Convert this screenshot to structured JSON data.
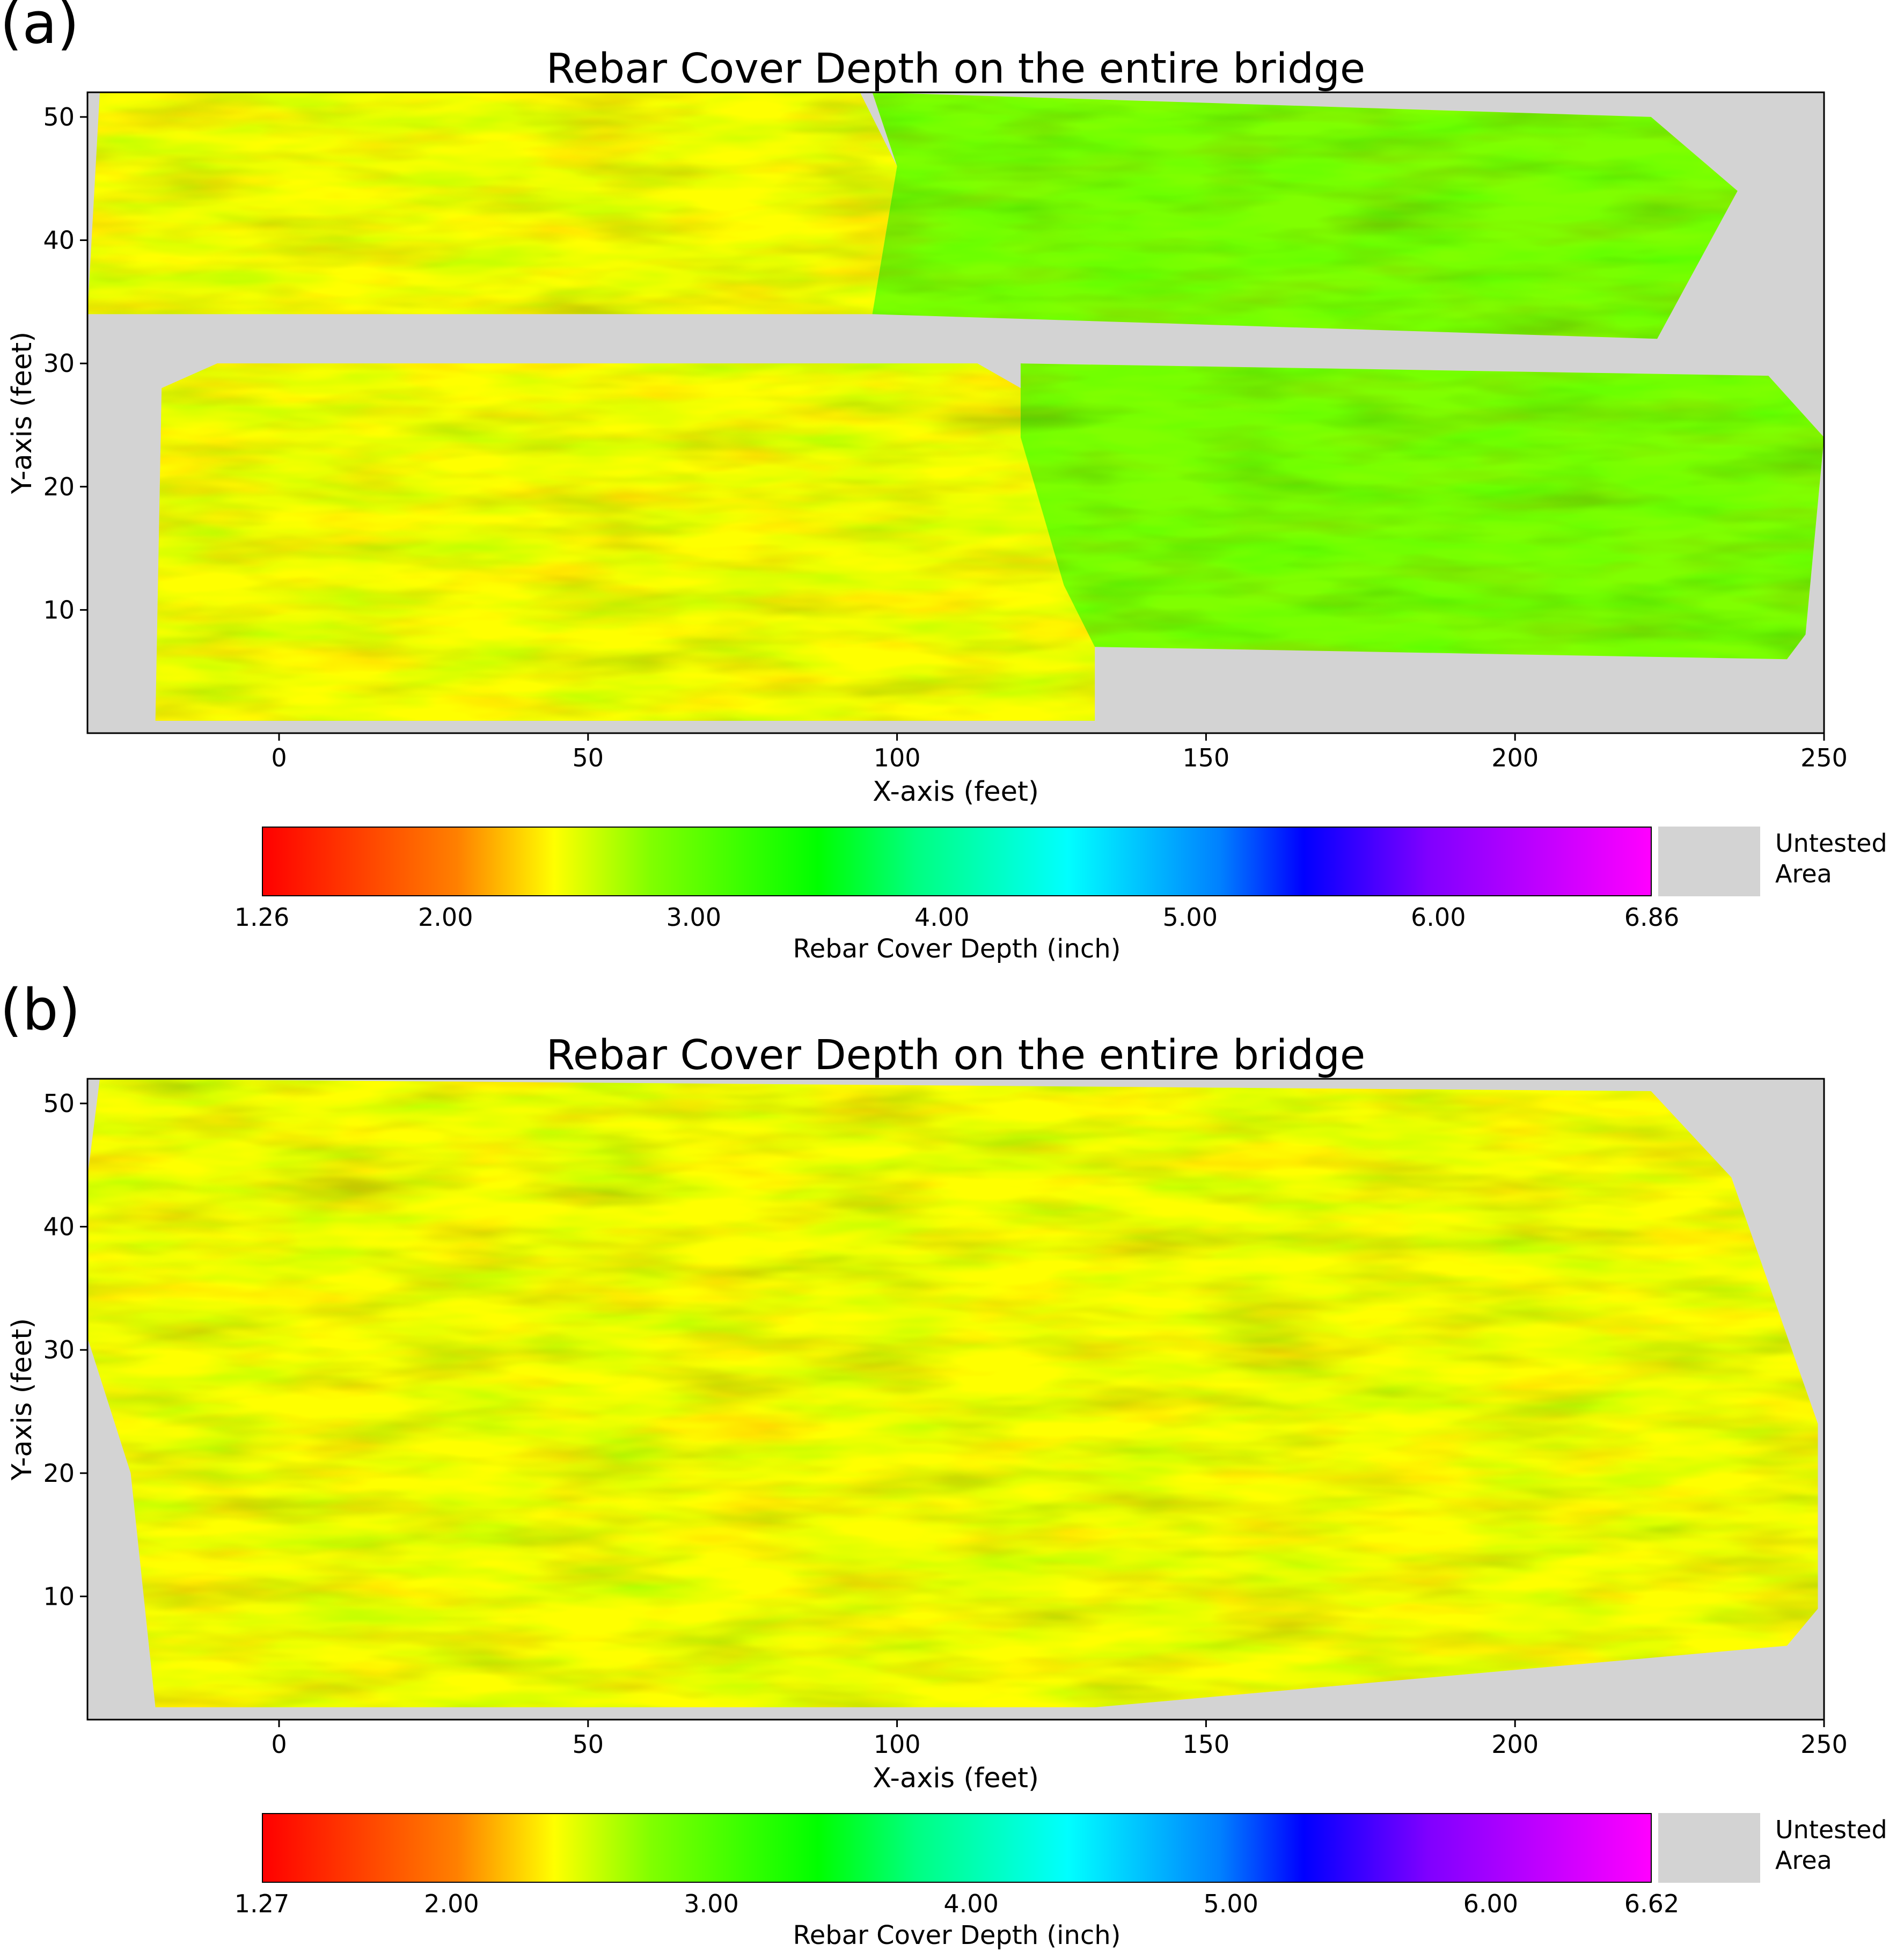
{
  "panels": [
    {
      "label": "(a)",
      "title": "Rebar Cover Depth on the entire bridge",
      "colorbar": {
        "ticks": [
          "1.26",
          "2.00",
          "3.00",
          "4.00",
          "5.00",
          "6.00",
          "6.86"
        ],
        "label": "Rebar Cover Depth (inch)",
        "untested": "Untested Area"
      }
    },
    {
      "label": "(b)",
      "title": "Rebar Cover Depth on the entire bridge",
      "colorbar": {
        "ticks": [
          "1.27",
          "2.00",
          "3.00",
          "4.00",
          "5.00",
          "6.00",
          "6.62"
        ],
        "label": "Rebar Cover Depth (inch)",
        "untested": "Untested Area"
      }
    }
  ],
  "chart_data": [
    {
      "type": "heatmap",
      "title": "Rebar Cover Depth on the entire bridge",
      "xlabel": "X-axis (feet)",
      "ylabel": "Y-axis (feet)",
      "xlim": [
        -31,
        250
      ],
      "ylim": [
        0,
        52
      ],
      "xticks": [
        0,
        50,
        100,
        150,
        200,
        250
      ],
      "yticks": [
        10,
        20,
        30,
        40,
        50
      ],
      "colorbar_range": [
        1.26,
        6.86
      ],
      "colorbar_label": "Rebar Cover Depth (inch)",
      "colormap": [
        "#ff0000",
        "#ff8000",
        "#ffff00",
        "#80ff00",
        "#00ff00",
        "#00ff80",
        "#00ffff",
        "#0080ff",
        "#0000ff",
        "#8000ff",
        "#ff00ff"
      ],
      "untested_color": "#d3d3d3",
      "regions": [
        {
          "polygon": [
            [
              -31,
              34
            ],
            [
              -29,
              52
            ],
            [
              94,
              52
            ],
            [
              100,
              46
            ],
            [
              96,
              34
            ]
          ],
          "depth_inch": 2.6
        },
        {
          "polygon": [
            [
              96,
              34
            ],
            [
              100,
              46
            ],
            [
              96,
              52
            ],
            [
              222,
              50
            ],
            [
              236,
              44
            ],
            [
              223,
              32
            ]
          ],
          "depth_inch": 2.7
        },
        {
          "polygon": [
            [
              -20,
              1
            ],
            [
              -19,
              28
            ],
            [
              -10,
              30
            ],
            [
              113,
              30
            ],
            [
              120,
              28
            ],
            [
              120,
              24
            ],
            [
              132,
              12
            ],
            [
              132,
              1
            ]
          ],
          "depth_inch": 2.5
        },
        {
          "polygon": [
            [
              120,
              30
            ],
            [
              241,
              29
            ],
            [
              250,
              24
            ],
            [
              247,
              8
            ],
            [
              244,
              6
            ],
            [
              132,
              7
            ],
            [
              127,
              12
            ],
            [
              120,
              24
            ]
          ],
          "depth_inch": 2.9
        }
      ]
    },
    {
      "type": "heatmap",
      "title": "Rebar Cover Depth on the entire bridge",
      "xlabel": "X-axis (feet)",
      "ylabel": "Y-axis (feet)",
      "xlim": [
        -31,
        250
      ],
      "ylim": [
        0,
        52
      ],
      "xticks": [
        0,
        50,
        100,
        150,
        200,
        250
      ],
      "yticks": [
        10,
        20,
        30,
        40,
        50
      ],
      "colorbar_range": [
        1.27,
        6.62
      ],
      "colorbar_label": "Rebar Cover Depth (inch)",
      "colormap": [
        "#ff0000",
        "#ff8000",
        "#ffff00",
        "#80ff00",
        "#00ff00",
        "#00ff80",
        "#00ffff",
        "#0080ff",
        "#0000ff",
        "#8000ff",
        "#ff00ff"
      ],
      "untested_color": "#d3d3d3",
      "regions": [
        {
          "polygon": [
            [
              -29,
              52
            ],
            [
              222,
              51
            ],
            [
              235,
              44
            ],
            [
              249,
              24
            ],
            [
              249,
              9
            ],
            [
              244,
              6
            ],
            [
              132,
              1
            ],
            [
              -20,
              1
            ],
            [
              -24,
              20
            ],
            [
              -31,
              31
            ],
            [
              -31,
              44
            ]
          ],
          "depth_inch": 2.6
        }
      ]
    }
  ]
}
